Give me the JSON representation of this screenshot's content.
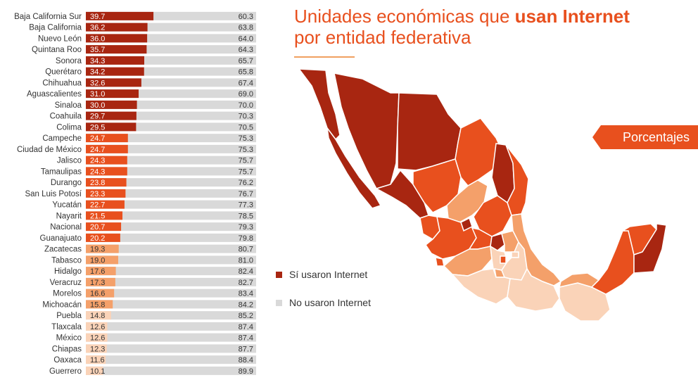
{
  "title": {
    "line1_pre": "Unidades económicas que ",
    "line1_bold": "usan Internet",
    "line2": "por entidad federativa"
  },
  "badge": "Porcentajes",
  "legend": {
    "yes_label": "Sí usaron Internet",
    "no_label": "No usaron Internet"
  },
  "colors": {
    "dark": "#a82611",
    "mid": "#e8501e",
    "light": "#f4a06a",
    "pale": "#fad3b8",
    "no": "#d9d9d9",
    "title": "#e8501e"
  },
  "chart_data": {
    "type": "bar",
    "stacked": true,
    "orientation": "horizontal",
    "title": "Unidades económicas que usan Internet por entidad federativa",
    "unit": "Porcentajes",
    "categories": [
      "Baja California Sur",
      "Baja California",
      "Nuevo León",
      "Quintana Roo",
      "Sonora",
      "Querétaro",
      "Chihuahua",
      "Aguascalientes",
      "Sinaloa",
      "Coahuila",
      "Colima",
      "Campeche",
      "Ciudad de México",
      "Jalisco",
      "Tamaulipas",
      "Durango",
      "San Luis Potosí",
      "Yucatán",
      "Nayarit",
      "Nacional",
      "Guanajuato",
      "Zacatecas",
      "Tabasco",
      "Hidalgo",
      "Veracruz",
      "Morelos",
      "Michoacán",
      "Puebla",
      "Tlaxcala",
      "México",
      "Chiapas",
      "Oaxaca",
      "Guerrero"
    ],
    "series": [
      {
        "name": "Sí usaron Internet",
        "values": [
          39.7,
          36.2,
          36.0,
          35.7,
          34.3,
          34.2,
          32.6,
          31.0,
          30.0,
          29.7,
          29.5,
          24.7,
          24.7,
          24.3,
          24.3,
          23.8,
          23.3,
          22.7,
          21.5,
          20.7,
          20.2,
          19.3,
          19.0,
          17.6,
          17.3,
          16.6,
          15.8,
          14.8,
          12.6,
          12.6,
          12.3,
          11.6,
          10.1
        ]
      },
      {
        "name": "No usaron Internet",
        "values": [
          60.3,
          63.8,
          64.0,
          64.3,
          65.7,
          65.8,
          67.4,
          69.0,
          70.0,
          70.3,
          70.5,
          75.3,
          75.3,
          75.7,
          75.7,
          76.2,
          76.7,
          77.3,
          78.5,
          79.3,
          79.8,
          80.7,
          81.0,
          82.4,
          82.7,
          83.4,
          84.2,
          85.2,
          87.4,
          87.4,
          87.7,
          88.4,
          89.9
        ]
      }
    ],
    "xlim": [
      0,
      100
    ],
    "legend": "right"
  }
}
